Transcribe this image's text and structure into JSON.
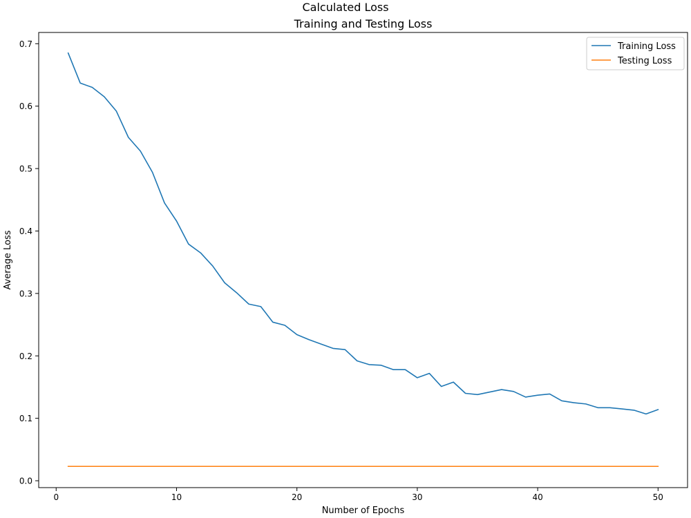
{
  "figure": {
    "suptitle": "Calculated Loss"
  },
  "chart_data": {
    "type": "line",
    "title": "Training and Testing Loss",
    "xlabel": "Number of Epochs",
    "ylabel": "Average Loss",
    "xlim": [
      -1.45,
      52.45
    ],
    "ylim": [
      -0.011,
      0.718
    ],
    "xticks": [
      0,
      10,
      20,
      30,
      40,
      50
    ],
    "yticks": [
      0.0,
      0.1,
      0.2,
      0.3,
      0.4,
      0.5,
      0.6,
      0.7
    ],
    "xtick_labels": [
      "0",
      "10",
      "20",
      "30",
      "40",
      "50"
    ],
    "ytick_labels": [
      "0.0",
      "0.1",
      "0.2",
      "0.3",
      "0.4",
      "0.5",
      "0.6",
      "0.7"
    ],
    "grid": false,
    "legend_position": "top-right",
    "x": [
      1,
      2,
      3,
      4,
      5,
      6,
      7,
      8,
      9,
      10,
      11,
      12,
      13,
      14,
      15,
      16,
      17,
      18,
      19,
      20,
      21,
      22,
      23,
      24,
      25,
      26,
      27,
      28,
      29,
      30,
      31,
      32,
      33,
      34,
      35,
      36,
      37,
      38,
      39,
      40,
      41,
      42,
      43,
      44,
      45,
      46,
      47,
      48,
      49,
      50
    ],
    "series": [
      {
        "name": "Training Loss",
        "color": "#1f77b4",
        "values": [
          0.685,
          0.637,
          0.63,
          0.615,
          0.592,
          0.55,
          0.528,
          0.494,
          0.445,
          0.416,
          0.379,
          0.365,
          0.344,
          0.317,
          0.301,
          0.283,
          0.279,
          0.254,
          0.249,
          0.234,
          0.226,
          0.219,
          0.212,
          0.21,
          0.192,
          0.186,
          0.185,
          0.178,
          0.178,
          0.165,
          0.172,
          0.151,
          0.158,
          0.14,
          0.138,
          0.142,
          0.146,
          0.143,
          0.134,
          0.137,
          0.139,
          0.128,
          0.125,
          0.123,
          0.117,
          0.117,
          0.115,
          0.113,
          0.107,
          0.114
        ]
      },
      {
        "name": "Testing Loss",
        "color": "#ff7f0e",
        "values": [
          0.023,
          0.023,
          0.023,
          0.023,
          0.023,
          0.023,
          0.023,
          0.023,
          0.023,
          0.023,
          0.023,
          0.023,
          0.023,
          0.023,
          0.023,
          0.023,
          0.023,
          0.023,
          0.023,
          0.023,
          0.023,
          0.023,
          0.023,
          0.023,
          0.023,
          0.023,
          0.023,
          0.023,
          0.023,
          0.023,
          0.023,
          0.023,
          0.023,
          0.023,
          0.023,
          0.023,
          0.023,
          0.023,
          0.023,
          0.023,
          0.023,
          0.023,
          0.023,
          0.023,
          0.023,
          0.023,
          0.023,
          0.023,
          0.023,
          0.023
        ]
      }
    ]
  }
}
